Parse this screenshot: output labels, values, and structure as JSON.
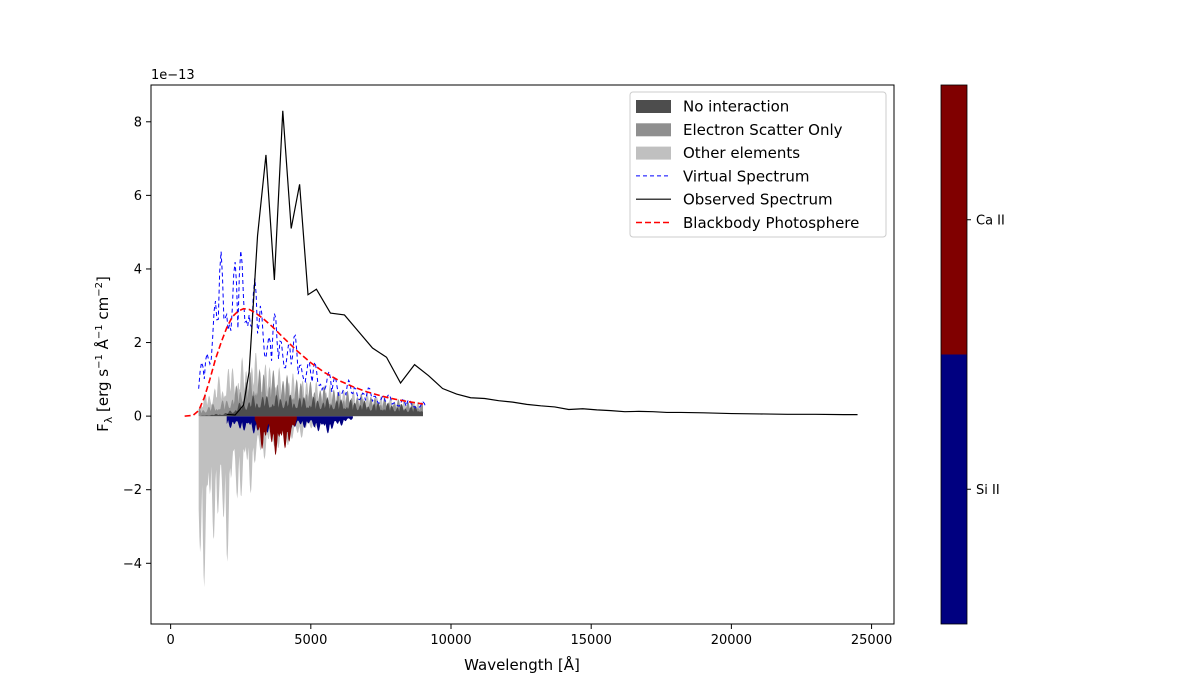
{
  "chart_data": {
    "type": "area",
    "xlabel": "Wavelength [Å]",
    "ylabel_parts": [
      "F",
      "λ",
      " [erg s",
      "−1",
      " Å",
      "−1",
      " cm",
      "−2",
      "]"
    ],
    "y_scale_label": "1e−13",
    "xlim": [
      -700,
      25800
    ],
    "ylim": [
      -5.65,
      9.0
    ],
    "xticks": [
      0,
      5000,
      10000,
      15000,
      20000,
      25000
    ],
    "yticks": [
      -4,
      -2,
      0,
      2,
      4,
      6,
      8
    ],
    "xtick_labels": [
      "0",
      "5000",
      "10000",
      "15000",
      "20000",
      "25000"
    ],
    "ytick_labels": [
      "−4",
      "−2",
      "0",
      "2",
      "4",
      "6",
      "8"
    ],
    "legend_position": "upper right",
    "legend": [
      {
        "label": "No interaction",
        "kind": "patch",
        "color": "#4d4d4d"
      },
      {
        "label": "Electron Scatter Only",
        "kind": "patch",
        "color": "#8f8f8f"
      },
      {
        "label": "Other elements",
        "kind": "patch",
        "color": "#c0c0c0"
      },
      {
        "label": "Virtual Spectrum",
        "kind": "line",
        "color": "#0000ff",
        "dash": "4,3",
        "width": 1
      },
      {
        "label": "Observed Spectrum",
        "kind": "line",
        "color": "#000000",
        "dash": "",
        "width": 1.2
      },
      {
        "label": "Blackbody Photosphere",
        "kind": "line",
        "color": "#ff0000",
        "dash": "6,3",
        "width": 1.6
      }
    ],
    "series": [
      {
        "name": "Observed Spectrum",
        "color": "#000000",
        "x": [
          2000,
          2300,
          2600,
          2800,
          3100,
          3400,
          3700,
          4000,
          4300,
          4600,
          4900,
          5200,
          5700,
          6200,
          6700,
          7200,
          7700,
          8200,
          8700,
          9200,
          9700,
          10200,
          10700,
          11200,
          11700,
          12200,
          12700,
          13200,
          13700,
          14200,
          14700,
          15200,
          15700,
          16200,
          16700,
          17200,
          17700,
          18200,
          19000,
          20000,
          21000,
          22000,
          23000,
          24000,
          24500
        ],
        "y": [
          0.05,
          0.03,
          0.3,
          1.2,
          4.9,
          7.1,
          3.7,
          8.3,
          5.1,
          6.3,
          3.3,
          3.45,
          2.8,
          2.75,
          2.3,
          1.85,
          1.6,
          0.9,
          1.4,
          1.1,
          0.75,
          0.6,
          0.5,
          0.48,
          0.42,
          0.38,
          0.32,
          0.28,
          0.25,
          0.18,
          0.2,
          0.17,
          0.15,
          0.12,
          0.13,
          0.12,
          0.1,
          0.1,
          0.09,
          0.07,
          0.06,
          0.05,
          0.05,
          0.04,
          0.04
        ]
      },
      {
        "name": "Blackbody Photosphere",
        "color": "#ff0000",
        "x": [
          500,
          800,
          1000,
          1200,
          1400,
          1600,
          1800,
          2000,
          2200,
          2400,
          2600,
          2800,
          3000,
          3300,
          3600,
          4000,
          4500,
          5000,
          5500,
          6000,
          6500,
          7000,
          7500,
          8000,
          8500,
          9000
        ],
        "y": [
          0.0,
          0.02,
          0.15,
          0.5,
          1.0,
          1.55,
          2.0,
          2.4,
          2.7,
          2.85,
          2.92,
          2.9,
          2.82,
          2.65,
          2.45,
          2.15,
          1.78,
          1.45,
          1.18,
          0.97,
          0.8,
          0.66,
          0.55,
          0.46,
          0.39,
          0.33
        ]
      }
    ],
    "virtual_spectrum": {
      "name": "Virtual Spectrum",
      "color": "#0000ff",
      "x_start": 1000,
      "x_end": 9100,
      "step": 50,
      "envelope_x": [
        1000,
        1200,
        1500,
        1800,
        2000,
        2300,
        2600,
        2900,
        3200,
        3500,
        4000,
        4500,
        5000,
        6000,
        7000,
        8000,
        9000
      ],
      "envelope_y": [
        1.0,
        2.0,
        3.2,
        4.6,
        4.4,
        4.5,
        5.0,
        4.0,
        3.5,
        3.0,
        2.6,
        2.2,
        1.6,
        1.1,
        0.8,
        0.55,
        0.4
      ]
    },
    "contributions": {
      "no_interaction": {
        "color": "#4d4d4d",
        "x": [
          1000,
          2000,
          2500,
          3000,
          4000,
          5000,
          6000,
          7000,
          8000,
          9000
        ],
        "y": [
          0.0,
          0.1,
          0.4,
          0.6,
          0.6,
          0.55,
          0.5,
          0.42,
          0.35,
          0.28
        ]
      },
      "electron_scatter": {
        "color": "#8f8f8f",
        "x": [
          1000,
          2000,
          2500,
          3000,
          4000,
          5000,
          6000,
          7000,
          8000,
          9000
        ],
        "y": [
          0.2,
          0.5,
          1.0,
          1.4,
          1.2,
          0.95,
          0.75,
          0.6,
          0.48,
          0.38
        ]
      },
      "other_elements_emission": {
        "color": "#c0c0c0",
        "x": [
          1000,
          1500,
          2000,
          2500,
          3000,
          3500,
          4000,
          5000,
          6000,
          7000,
          8000,
          9000
        ],
        "y": [
          0.4,
          0.9,
          1.4,
          1.6,
          1.8,
          1.5,
          1.3,
          1.0,
          0.8,
          0.65,
          0.5,
          0.4
        ]
      },
      "other_elements_absorption": {
        "color": "#c0c0c0",
        "x": [
          1000,
          1200,
          1400,
          1600,
          1800,
          2000,
          2200,
          2400,
          2600,
          2800,
          3000,
          3500,
          4000,
          4500,
          5000,
          5500,
          6000,
          6500
        ],
        "y": [
          -3.9,
          -5.05,
          -4.0,
          -3.2,
          -3.7,
          -4.2,
          -2.4,
          -2.6,
          -2.2,
          -2.4,
          -1.6,
          -1.0,
          -0.9,
          -0.7,
          -0.4,
          -0.25,
          -0.15,
          -0.05
        ]
      },
      "si_ii_absorption": {
        "color": "#000080",
        "x": [
          2000,
          2500,
          3000,
          3500,
          4000,
          4500,
          5000,
          5500,
          6000,
          6500
        ],
        "y": [
          -0.3,
          -0.4,
          -0.5,
          -0.45,
          -0.4,
          -0.35,
          -0.3,
          -0.55,
          -0.3,
          -0.1
        ]
      },
      "ca_ii_absorption": {
        "color": "#800000",
        "x": [
          3000,
          3300,
          3500,
          3700,
          3900,
          4100,
          4300,
          4500
        ],
        "y": [
          -0.3,
          -1.0,
          -0.6,
          -1.1,
          -1.2,
          -0.9,
          -0.8,
          -0.2
        ]
      }
    },
    "colorbar": {
      "segments": [
        {
          "label": "Si II",
          "color": "#000080"
        },
        {
          "label": "Ca II",
          "color": "#800000"
        }
      ],
      "labels": [
        "Si II",
        "Ca II"
      ]
    }
  }
}
